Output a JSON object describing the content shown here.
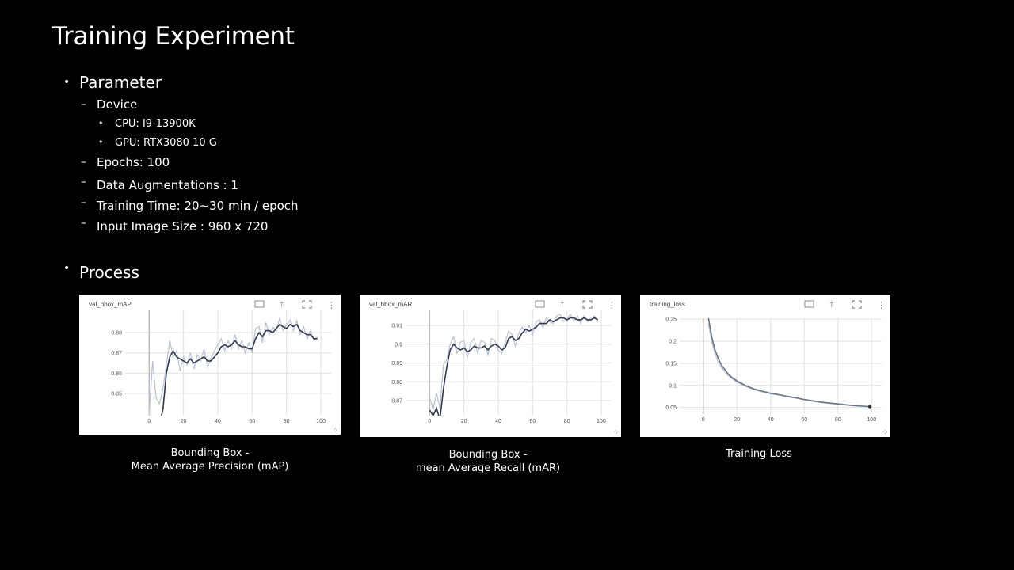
{
  "slide": {
    "title": "Training Experiment",
    "parameter": {
      "heading": "Parameter",
      "device_label": "Device",
      "cpu": "CPU: I9-13900K",
      "gpu": "GPU: RTX3080 10 G",
      "epochs": "Epochs: 100",
      "augmentations": "Data Augmentations : 1",
      "training_time": "Training Time: 20~30 min / epoch",
      "input_size": "Input Image Size : 960 x 720"
    },
    "process": {
      "heading": "Process"
    },
    "captions": [
      {
        "line1": "Bounding Box -",
        "line2": "Mean Average Precision  (mAP)"
      },
      {
        "line1": "Bounding Box -",
        "line2": "mean Average Recall  (mAR)"
      },
      {
        "line1": "Training Loss",
        "line2": ""
      }
    ]
  },
  "chart_data": [
    {
      "type": "line",
      "title": "val_bbox_mAP",
      "xlim": [
        -14,
        106
      ],
      "ylim": [
        0.839,
        0.891
      ],
      "x_ticks": [
        0,
        20,
        40,
        60,
        80,
        100
      ],
      "y_ticks": [
        0.85,
        0.86,
        0.87,
        0.88
      ],
      "grid": true,
      "series": [
        {
          "role": "smoothed",
          "x": [
            0,
            2,
            4,
            6,
            8,
            10,
            12,
            14,
            16,
            18,
            20,
            22,
            24,
            26,
            28,
            30,
            32,
            34,
            36,
            38,
            40,
            42,
            44,
            46,
            48,
            50,
            52,
            54,
            56,
            58,
            60,
            62,
            64,
            66,
            68,
            70,
            72,
            74,
            76,
            78,
            80,
            82,
            84,
            86,
            88,
            90,
            92,
            94,
            96,
            98
          ],
          "y": [
            0.836,
            0.832,
            0.838,
            0.835,
            0.842,
            0.86,
            0.868,
            0.871,
            0.868,
            0.867,
            0.866,
            0.865,
            0.867,
            0.865,
            0.866,
            0.867,
            0.868,
            0.866,
            0.866,
            0.868,
            0.87,
            0.873,
            0.874,
            0.873,
            0.874,
            0.876,
            0.874,
            0.873,
            0.873,
            0.872,
            0.872,
            0.877,
            0.88,
            0.878,
            0.881,
            0.881,
            0.88,
            0.882,
            0.884,
            0.883,
            0.882,
            0.884,
            0.883,
            0.884,
            0.881,
            0.88,
            0.879,
            0.879,
            0.877,
            0.877
          ]
        },
        {
          "role": "raw",
          "x": [
            0,
            2,
            4,
            6,
            8,
            10,
            12,
            14,
            16,
            18,
            20,
            22,
            24,
            26,
            28,
            30,
            32,
            34,
            36,
            38,
            40,
            42,
            44,
            46,
            48,
            50,
            52,
            54,
            56,
            58,
            60,
            62,
            64,
            66,
            68,
            70,
            72,
            74,
            76,
            78,
            80,
            82,
            84,
            86,
            88,
            90,
            92,
            94,
            96,
            98
          ],
          "y": [
            0.84,
            0.866,
            0.848,
            0.845,
            0.852,
            0.864,
            0.876,
            0.868,
            0.871,
            0.861,
            0.868,
            0.864,
            0.87,
            0.862,
            0.869,
            0.866,
            0.872,
            0.863,
            0.867,
            0.871,
            0.874,
            0.877,
            0.871,
            0.876,
            0.872,
            0.879,
            0.872,
            0.876,
            0.87,
            0.875,
            0.87,
            0.882,
            0.883,
            0.875,
            0.885,
            0.879,
            0.883,
            0.881,
            0.887,
            0.881,
            0.884,
            0.886,
            0.881,
            0.886,
            0.879,
            0.883,
            0.877,
            0.881,
            0.876,
            0.878
          ]
        }
      ]
    },
    {
      "type": "line",
      "title": "val_bbox_mAR",
      "xlim": [
        -14,
        106
      ],
      "ylim": [
        0.862,
        0.918
      ],
      "x_ticks": [
        0,
        20,
        40,
        60,
        80,
        100
      ],
      "y_ticks": [
        0.87,
        0.88,
        0.89,
        0.9,
        0.91
      ],
      "grid": true,
      "series": [
        {
          "role": "smoothed",
          "x": [
            0,
            2,
            4,
            6,
            8,
            10,
            12,
            14,
            16,
            18,
            20,
            22,
            24,
            26,
            28,
            30,
            32,
            34,
            36,
            38,
            40,
            42,
            44,
            46,
            48,
            50,
            52,
            54,
            56,
            58,
            60,
            62,
            64,
            66,
            68,
            70,
            72,
            74,
            76,
            78,
            80,
            82,
            84,
            86,
            88,
            90,
            92,
            94,
            96,
            98
          ],
          "y": [
            0.865,
            0.862,
            0.866,
            0.86,
            0.876,
            0.888,
            0.897,
            0.9,
            0.898,
            0.897,
            0.898,
            0.896,
            0.897,
            0.899,
            0.898,
            0.898,
            0.899,
            0.897,
            0.899,
            0.9,
            0.899,
            0.897,
            0.898,
            0.903,
            0.904,
            0.902,
            0.903,
            0.906,
            0.908,
            0.907,
            0.908,
            0.909,
            0.911,
            0.911,
            0.911,
            0.913,
            0.912,
            0.913,
            0.914,
            0.914,
            0.913,
            0.914,
            0.914,
            0.913,
            0.913,
            0.914,
            0.913,
            0.913,
            0.914,
            0.913
          ]
        },
        {
          "role": "raw",
          "x": [
            0,
            2,
            4,
            6,
            8,
            10,
            12,
            14,
            16,
            18,
            20,
            22,
            24,
            26,
            28,
            30,
            32,
            34,
            36,
            38,
            40,
            42,
            44,
            46,
            48,
            50,
            52,
            54,
            56,
            58,
            60,
            62,
            64,
            66,
            68,
            70,
            72,
            74,
            76,
            78,
            80,
            82,
            84,
            86,
            88,
            90,
            92,
            94,
            96,
            98
          ],
          "y": [
            0.872,
            0.865,
            0.874,
            0.866,
            0.889,
            0.892,
            0.9,
            0.904,
            0.895,
            0.901,
            0.902,
            0.893,
            0.901,
            0.903,
            0.895,
            0.902,
            0.901,
            0.894,
            0.903,
            0.902,
            0.897,
            0.895,
            0.901,
            0.907,
            0.905,
            0.899,
            0.906,
            0.909,
            0.906,
            0.91,
            0.905,
            0.912,
            0.913,
            0.909,
            0.914,
            0.912,
            0.911,
            0.915,
            0.916,
            0.912,
            0.913,
            0.916,
            0.912,
            0.915,
            0.911,
            0.915,
            0.912,
            0.914,
            0.915,
            0.912
          ]
        }
      ]
    },
    {
      "type": "line",
      "title": "training_loss",
      "xlim": [
        -14,
        106
      ],
      "ylim": [
        0.035,
        0.252
      ],
      "x_ticks": [
        0,
        20,
        40,
        60,
        80,
        100
      ],
      "y_ticks": [
        0.05,
        0.1,
        0.15,
        0.2,
        0.25
      ],
      "grid": true,
      "series": [
        {
          "role": "smoothed",
          "x": [
            3,
            5,
            7,
            9,
            11,
            13,
            15,
            17,
            20,
            25,
            30,
            35,
            40,
            45,
            50,
            55,
            60,
            65,
            70,
            75,
            80,
            85,
            90,
            95,
            99
          ],
          "y": [
            0.255,
            0.21,
            0.18,
            0.16,
            0.145,
            0.135,
            0.125,
            0.118,
            0.11,
            0.1,
            0.092,
            0.087,
            0.082,
            0.079,
            0.075,
            0.072,
            0.068,
            0.065,
            0.062,
            0.06,
            0.058,
            0.056,
            0.054,
            0.053,
            0.052
          ]
        },
        {
          "role": "raw",
          "x": [
            3,
            5,
            7,
            9,
            11,
            13,
            15,
            17,
            20,
            25,
            30,
            35,
            40,
            45,
            50,
            55,
            60,
            65,
            70,
            75,
            80,
            85,
            90,
            95,
            99
          ],
          "y": [
            0.24,
            0.2,
            0.17,
            0.152,
            0.14,
            0.13,
            0.121,
            0.115,
            0.107,
            0.098,
            0.09,
            0.085,
            0.081,
            0.078,
            0.074,
            0.071,
            0.067,
            0.064,
            0.061,
            0.059,
            0.057,
            0.055,
            0.054,
            0.052,
            0.051
          ]
        }
      ]
    }
  ]
}
